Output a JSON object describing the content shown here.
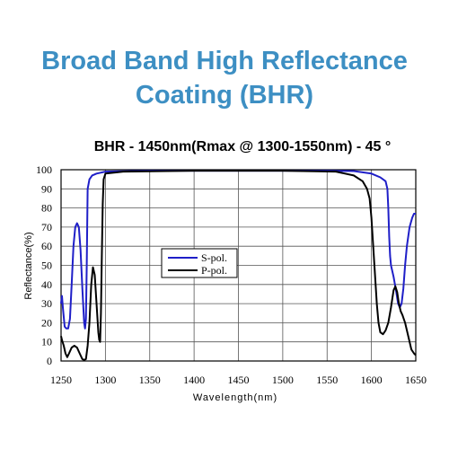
{
  "heading": {
    "line1": "Broad Band High Reflectance",
    "line2": "Coating (BHR)"
  },
  "chart_data": {
    "type": "line",
    "title": "BHR - 1450nm(Rmax @ 1300-1550nm) - 45 °",
    "xlabel": "Wavelength(nm)",
    "ylabel": "Reflectance(%)",
    "xlim": [
      1250,
      1650
    ],
    "ylim": [
      0,
      100
    ],
    "xticks": [
      1250,
      1300,
      1350,
      1400,
      1450,
      1500,
      1550,
      1600,
      1650
    ],
    "yticks": [
      0,
      10,
      20,
      30,
      40,
      50,
      60,
      70,
      80,
      90,
      100
    ],
    "grid": true,
    "legend_position": "center-left",
    "series": [
      {
        "name": "S-pol.",
        "color": "#1f1fc8",
        "points": [
          [
            1250,
            30
          ],
          [
            1251,
            34
          ],
          [
            1252,
            28
          ],
          [
            1254,
            18
          ],
          [
            1256,
            17
          ],
          [
            1258,
            17
          ],
          [
            1260,
            22
          ],
          [
            1262,
            40
          ],
          [
            1264,
            60
          ],
          [
            1266,
            70
          ],
          [
            1268,
            72
          ],
          [
            1270,
            70
          ],
          [
            1272,
            58
          ],
          [
            1274,
            38
          ],
          [
            1276,
            20
          ],
          [
            1277,
            17
          ],
          [
            1278,
            22
          ],
          [
            1279,
            50
          ],
          [
            1280,
            90
          ],
          [
            1282,
            95
          ],
          [
            1285,
            97
          ],
          [
            1290,
            98
          ],
          [
            1300,
            99
          ],
          [
            1350,
            99.5
          ],
          [
            1400,
            99.5
          ],
          [
            1450,
            99.5
          ],
          [
            1500,
            99.5
          ],
          [
            1550,
            99.5
          ],
          [
            1580,
            99.3
          ],
          [
            1600,
            98
          ],
          [
            1610,
            96
          ],
          [
            1616,
            94
          ],
          [
            1618,
            90
          ],
          [
            1619,
            80
          ],
          [
            1620,
            65
          ],
          [
            1621,
            55
          ],
          [
            1622,
            50
          ],
          [
            1625,
            44
          ],
          [
            1628,
            36
          ],
          [
            1630,
            30
          ],
          [
            1632,
            28
          ],
          [
            1634,
            30
          ],
          [
            1636,
            38
          ],
          [
            1638,
            50
          ],
          [
            1640,
            60
          ],
          [
            1643,
            70
          ],
          [
            1646,
            75
          ],
          [
            1648,
            77
          ],
          [
            1650,
            77
          ]
        ]
      },
      {
        "name": "P-pol.",
        "color": "#000000",
        "points": [
          [
            1250,
            13
          ],
          [
            1251,
            11
          ],
          [
            1253,
            8
          ],
          [
            1255,
            4
          ],
          [
            1257,
            2
          ],
          [
            1259,
            4
          ],
          [
            1262,
            7
          ],
          [
            1265,
            8
          ],
          [
            1268,
            7
          ],
          [
            1271,
            4
          ],
          [
            1274,
            1
          ],
          [
            1276,
            0.5
          ],
          [
            1278,
            1
          ],
          [
            1280,
            8
          ],
          [
            1282,
            20
          ],
          [
            1284,
            40
          ],
          [
            1286,
            49
          ],
          [
            1288,
            45
          ],
          [
            1290,
            30
          ],
          [
            1292,
            15
          ],
          [
            1293,
            11
          ],
          [
            1294,
            10
          ],
          [
            1295,
            25
          ],
          [
            1296,
            55
          ],
          [
            1297,
            82
          ],
          [
            1298,
            95
          ],
          [
            1300,
            98
          ],
          [
            1320,
            99
          ],
          [
            1400,
            99.5
          ],
          [
            1500,
            99.5
          ],
          [
            1560,
            99
          ],
          [
            1580,
            97
          ],
          [
            1590,
            94
          ],
          [
            1595,
            90
          ],
          [
            1598,
            85
          ],
          [
            1600,
            75
          ],
          [
            1602,
            60
          ],
          [
            1604,
            45
          ],
          [
            1606,
            30
          ],
          [
            1608,
            20
          ],
          [
            1610,
            15
          ],
          [
            1613,
            14
          ],
          [
            1616,
            16
          ],
          [
            1619,
            20
          ],
          [
            1622,
            28
          ],
          [
            1625,
            37
          ],
          [
            1627,
            39
          ],
          [
            1629,
            36
          ],
          [
            1631,
            30
          ],
          [
            1633,
            26
          ],
          [
            1635,
            24
          ],
          [
            1638,
            20
          ],
          [
            1642,
            12
          ],
          [
            1645,
            6
          ],
          [
            1648,
            4
          ],
          [
            1650,
            3
          ]
        ]
      }
    ]
  }
}
